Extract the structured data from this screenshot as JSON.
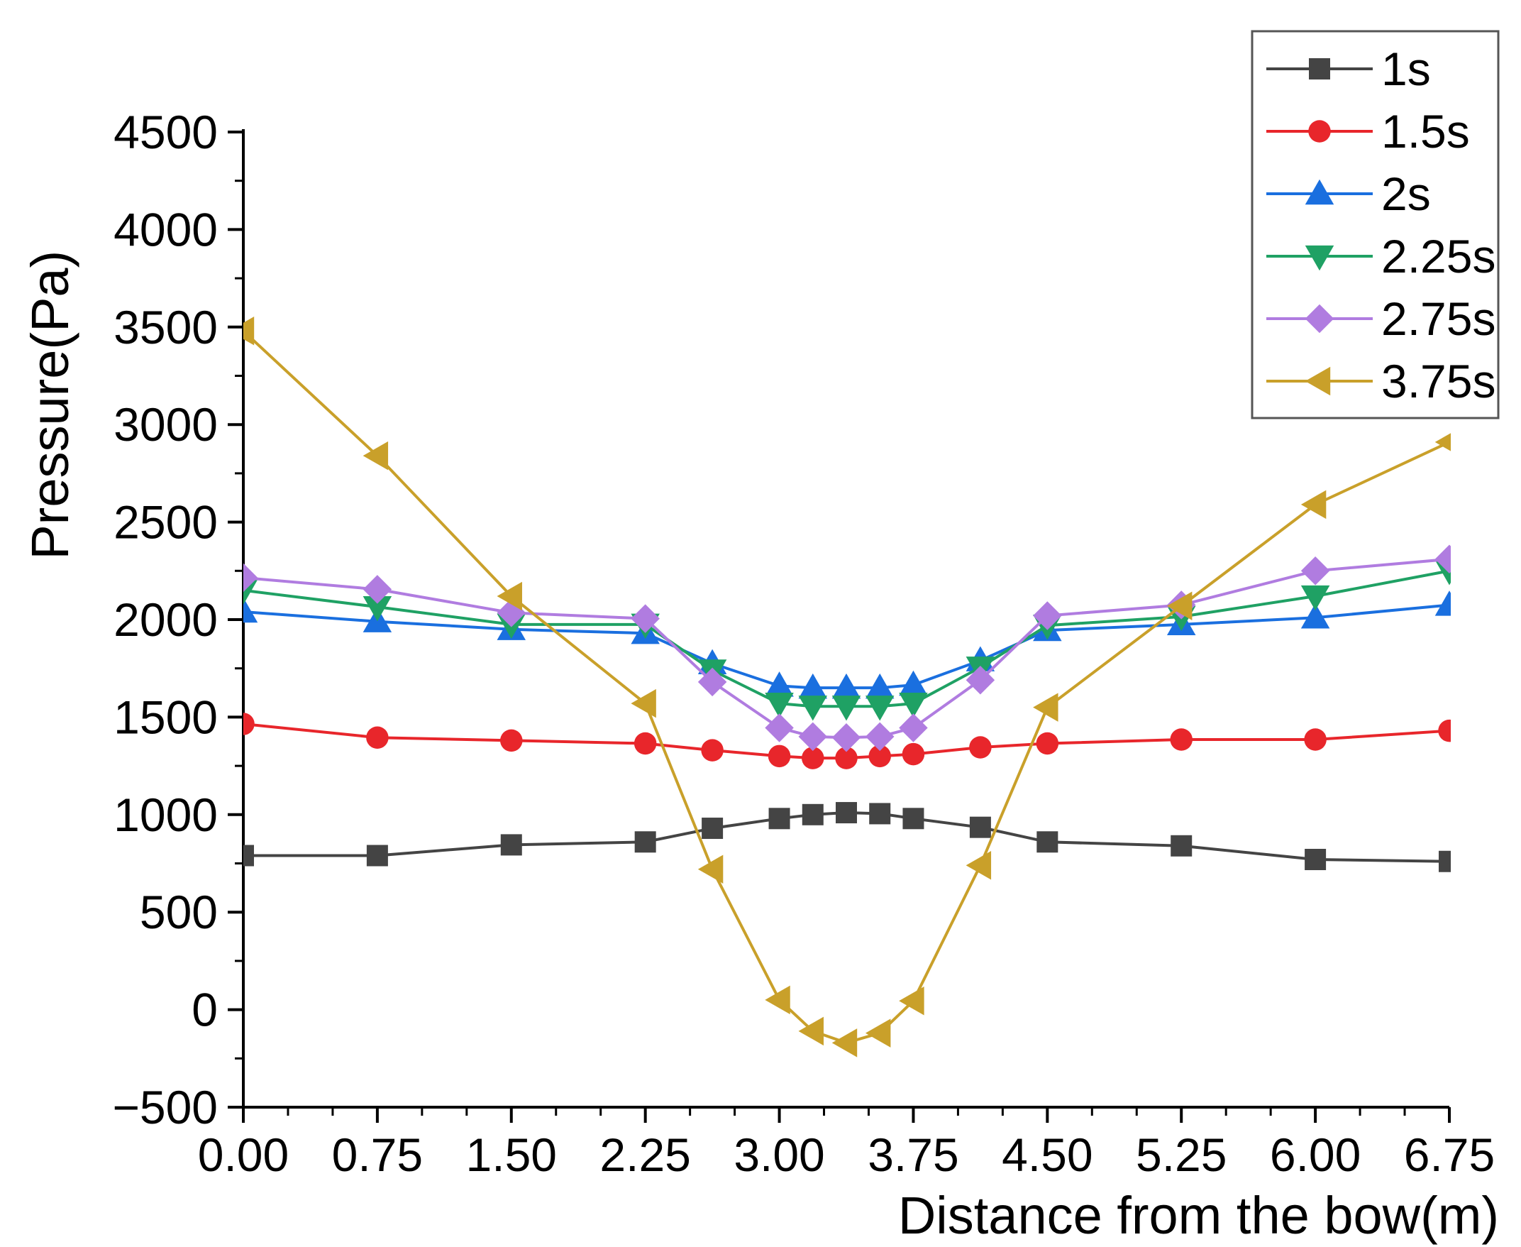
{
  "chart_data": {
    "type": "line",
    "title": "",
    "xlabel": "Distance from the bow(m)",
    "ylabel": "Pressure(Pa)",
    "xlim": [
      0,
      6.75
    ],
    "ylim": [
      -500,
      4500
    ],
    "x_ticks": [
      "0.00",
      "0.75",
      "1.50",
      "2.25",
      "3.00",
      "3.75",
      "4.50",
      "5.25",
      "6.00",
      "6.75"
    ],
    "x_tick_values": [
      0,
      0.75,
      1.5,
      2.25,
      3.0,
      3.75,
      4.5,
      5.25,
      6.0,
      6.75
    ],
    "y_ticks": [
      "−500",
      "0",
      "500",
      "1000",
      "1500",
      "2000",
      "2500",
      "3000",
      "3500",
      "4000",
      "4500"
    ],
    "y_tick_values": [
      -500,
      0,
      500,
      1000,
      1500,
      2000,
      2500,
      3000,
      3500,
      4000,
      4500
    ],
    "x": [
      0,
      0.75,
      1.5,
      2.25,
      2.625,
      3.0,
      3.1875,
      3.375,
      3.5625,
      3.75,
      4.125,
      4.5,
      5.25,
      6.0,
      6.75
    ],
    "legend_position": "top-right",
    "series": [
      {
        "name": "1s",
        "color": "#444444",
        "marker": "square",
        "values": [
          790,
          790,
          845,
          860,
          930,
          980,
          1000,
          1010,
          1005,
          980,
          935,
          860,
          840,
          770,
          760
        ]
      },
      {
        "name": "1.5s",
        "color": "#e8262b",
        "marker": "circle",
        "values": [
          1465,
          1395,
          1380,
          1365,
          1330,
          1300,
          1290,
          1290,
          1300,
          1310,
          1345,
          1365,
          1385,
          1385,
          1430
        ]
      },
      {
        "name": "2s",
        "color": "#1a6fdf",
        "marker": "triangle-up",
        "values": [
          2040,
          1990,
          1950,
          1930,
          1775,
          1660,
          1650,
          1650,
          1650,
          1665,
          1790,
          1945,
          1975,
          2010,
          2075
        ]
      },
      {
        "name": "2.25s",
        "color": "#1fa164",
        "marker": "triangle-down",
        "values": [
          2150,
          2065,
          1975,
          1975,
          1740,
          1570,
          1555,
          1555,
          1555,
          1570,
          1755,
          1970,
          2015,
          2120,
          2250
        ]
      },
      {
        "name": "2.75s",
        "color": "#b07ce0",
        "marker": "diamond",
        "values": [
          2215,
          2155,
          2035,
          2005,
          1680,
          1445,
          1400,
          1395,
          1400,
          1445,
          1690,
          2020,
          2075,
          2250,
          2310
        ]
      },
      {
        "name": "3.75s",
        "color": "#c9a02a",
        "marker": "triangle-left",
        "values": [
          3480,
          2840,
          2120,
          1570,
          720,
          50,
          -110,
          -170,
          -120,
          45,
          740,
          1550,
          2070,
          2590,
          2910
        ]
      }
    ]
  }
}
